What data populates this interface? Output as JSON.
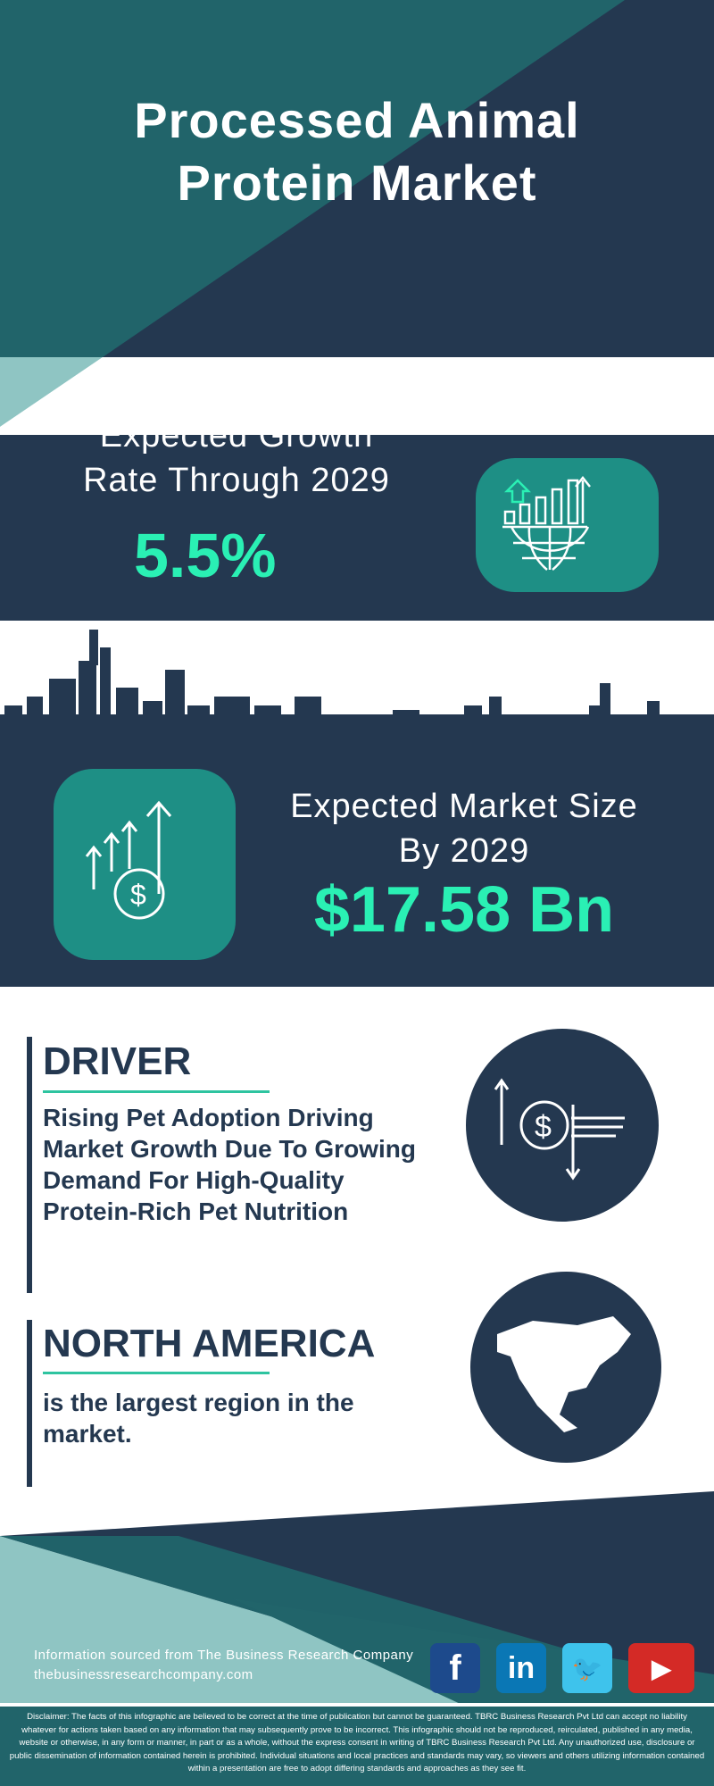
{
  "title": {
    "line1": "Processed Animal",
    "line2": "Protein Market"
  },
  "growth": {
    "label_line1": "Expected Growth",
    "label_line2": "Rate Through 2029",
    "value": "5.5%",
    "icon": "globe-bar-chart-icon"
  },
  "market_size": {
    "label_line1": "Expected Market Size",
    "label_line2": "By 2029",
    "value": "$17.58 Bn",
    "icon": "dollar-growth-arrows-icon"
  },
  "driver": {
    "heading": "DRIVER",
    "text": "Rising Pet Adoption Driving Market Growth Due To Growing Demand For High-Quality Protein-Rich Pet Nutrition",
    "icon": "dollar-exchange-icon"
  },
  "region": {
    "heading": "NORTH AMERICA",
    "text": "is the largest region in the market.",
    "icon": "north-america-map-icon"
  },
  "footer": {
    "source": "Information sourced from The Business Research Company",
    "website": "thebusinessresearchcompany.com",
    "social": [
      {
        "name": "facebook",
        "label": "f",
        "color": "#1d4a8c"
      },
      {
        "name": "linkedin",
        "label": "in",
        "color": "#0a77b5"
      },
      {
        "name": "twitter",
        "label": "🐦",
        "color": "#3ec3ec"
      },
      {
        "name": "youtube",
        "label": "▶",
        "color": "#d42a26"
      }
    ],
    "disclaimer": "Disclaimer: The facts of this infographic are believed to be correct at the time of publication but cannot be guaranteed. TBRC Business Research Pvt Ltd can accept no liability whatever for actions taken based on any information that may subsequently prove to be incorrect. This infographic should not be reproduced, reirculated, published in any media, website or otherwise, in any form or manner, in part or as a whole, without the express consent in writing of TBRC Business Research Pvt Ltd. Any unauthorized use, disclosure or public dissemination of information contained herein is prohibited. Individual situations and local practices and standards may vary, so viewers and others utilizing information contained within a presentation are free to adopt differing standards and approaches as they see fit."
  },
  "colors": {
    "navy": "#243850",
    "teal": "#21646a",
    "light_teal": "#8fc5c3",
    "accent": "#2af0b4"
  }
}
